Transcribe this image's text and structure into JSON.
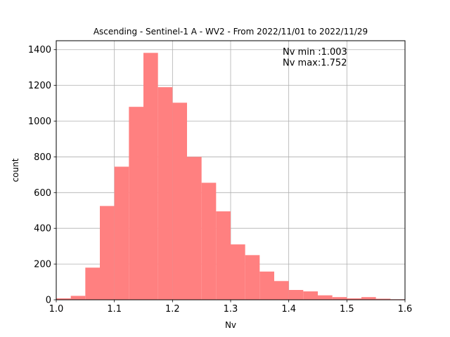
{
  "chart_data": {
    "type": "bar",
    "title": "Ascending - Sentinel-1 A - WV2 - From 2022/11/01 to 2022/11/29",
    "xlabel": "Nv",
    "ylabel": "count",
    "xlim": [
      1.0,
      1.6
    ],
    "ylim": [
      0,
      1450
    ],
    "xticks": [
      "1.0",
      "1.1",
      "1.2",
      "1.3",
      "1.4",
      "1.5",
      "1.6"
    ],
    "yticks": [
      "0",
      "200",
      "400",
      "600",
      "800",
      "1000",
      "1200",
      "1400"
    ],
    "grid": true,
    "bar_color": "#ff8080",
    "bins": [
      {
        "x0": 1.0,
        "x1": 1.025,
        "value": 8
      },
      {
        "x0": 1.025,
        "x1": 1.05,
        "value": 22
      },
      {
        "x0": 1.05,
        "x1": 1.075,
        "value": 180
      },
      {
        "x0": 1.075,
        "x1": 1.1,
        "value": 525
      },
      {
        "x0": 1.1,
        "x1": 1.125,
        "value": 745
      },
      {
        "x0": 1.125,
        "x1": 1.15,
        "value": 1080
      },
      {
        "x0": 1.15,
        "x1": 1.175,
        "value": 1382
      },
      {
        "x0": 1.175,
        "x1": 1.2,
        "value": 1190
      },
      {
        "x0": 1.2,
        "x1": 1.225,
        "value": 1103
      },
      {
        "x0": 1.225,
        "x1": 1.25,
        "value": 800
      },
      {
        "x0": 1.25,
        "x1": 1.275,
        "value": 655
      },
      {
        "x0": 1.275,
        "x1": 1.3,
        "value": 495
      },
      {
        "x0": 1.3,
        "x1": 1.325,
        "value": 310
      },
      {
        "x0": 1.325,
        "x1": 1.35,
        "value": 250
      },
      {
        "x0": 1.35,
        "x1": 1.375,
        "value": 158
      },
      {
        "x0": 1.375,
        "x1": 1.4,
        "value": 105
      },
      {
        "x0": 1.4,
        "x1": 1.425,
        "value": 55
      },
      {
        "x0": 1.425,
        "x1": 1.45,
        "value": 47
      },
      {
        "x0": 1.45,
        "x1": 1.475,
        "value": 25
      },
      {
        "x0": 1.475,
        "x1": 1.5,
        "value": 15
      },
      {
        "x0": 1.5,
        "x1": 1.525,
        "value": 8
      },
      {
        "x0": 1.525,
        "x1": 1.55,
        "value": 15
      },
      {
        "x0": 1.55,
        "x1": 1.575,
        "value": 6
      },
      {
        "x0": 1.575,
        "x1": 1.6,
        "value": 3
      }
    ],
    "annotation": {
      "lines": [
        "Nv min :1.003",
        "Nv max:1.752"
      ]
    }
  }
}
